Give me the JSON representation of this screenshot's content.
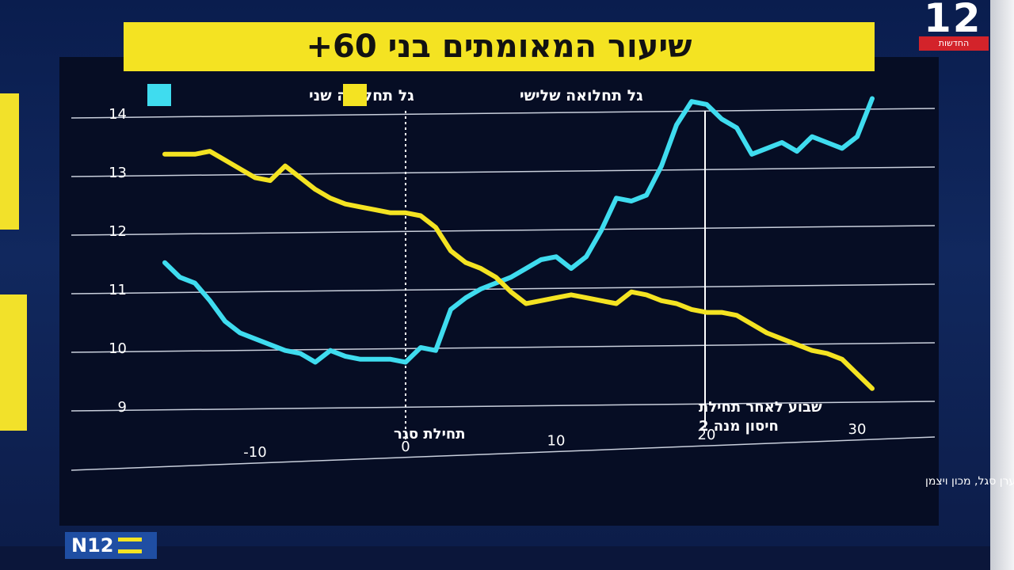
{
  "channel_logo": {
    "number": "12",
    "tagline": "החדשות"
  },
  "n12_badge": "N12",
  "chart_data": {
    "type": "line",
    "title": "שיעור המאומתים בני 60+",
    "source": "נתונים: פרופ' ערן סגל, מכון ויצמן",
    "x_ticks": [
      -10,
      0,
      10,
      20,
      30
    ],
    "y_ticks": [
      9,
      10,
      11,
      12,
      13,
      14
    ],
    "xlim": [
      -17,
      33
    ],
    "ylim": [
      8.5,
      14.5
    ],
    "grid": true,
    "legend_position": "top-left",
    "series": [
      {
        "name": "גל תחלואה שני",
        "color": "#3fdcef",
        "x": [
          -16,
          -15,
          -14,
          -13,
          -12,
          -11,
          -10,
          -9,
          -8,
          -7,
          -6,
          -5,
          -4,
          -3,
          -2,
          -1,
          0,
          1,
          2,
          3,
          4,
          5,
          6,
          7,
          8,
          9,
          10,
          11,
          12,
          13,
          14,
          15,
          16,
          17,
          18,
          19,
          20,
          21,
          22,
          23,
          24,
          25,
          26,
          27,
          28,
          29,
          30,
          31
        ],
        "y": [
          11.45,
          11.2,
          11.1,
          10.8,
          10.45,
          10.25,
          10.15,
          10.05,
          9.95,
          9.9,
          9.75,
          9.95,
          9.85,
          9.8,
          9.8,
          9.8,
          9.75,
          10.0,
          9.95,
          10.65,
          10.85,
          11.0,
          11.1,
          11.2,
          11.35,
          11.5,
          11.55,
          11.35,
          11.55,
          12.0,
          12.55,
          12.5,
          12.6,
          13.1,
          13.8,
          14.2,
          14.15,
          13.9,
          13.75,
          13.3,
          13.4,
          13.5,
          13.35,
          13.6,
          13.5,
          13.4,
          13.6,
          14.25
        ]
      },
      {
        "name": "גל תחלואה שלישי",
        "color": "#f4e322",
        "x": [
          -16,
          -15,
          -14,
          -13,
          -12,
          -11,
          -10,
          -9,
          -8,
          -7,
          -6,
          -5,
          -4,
          -3,
          -2,
          -1,
          0,
          1,
          2,
          3,
          4,
          5,
          6,
          7,
          8,
          9,
          10,
          11,
          12,
          13,
          14,
          15,
          16,
          17,
          18,
          19,
          20,
          21,
          22,
          23,
          24,
          25,
          26,
          27,
          28,
          29,
          30,
          31
        ],
        "y": [
          13.3,
          13.3,
          13.3,
          13.35,
          13.2,
          13.05,
          12.9,
          12.85,
          13.1,
          12.9,
          12.7,
          12.55,
          12.45,
          12.4,
          12.35,
          12.3,
          12.3,
          12.25,
          12.05,
          11.65,
          11.45,
          11.35,
          11.2,
          10.95,
          10.75,
          10.8,
          10.85,
          10.9,
          10.85,
          10.8,
          10.75,
          10.95,
          10.9,
          10.8,
          10.75,
          10.65,
          10.6,
          10.6,
          10.55,
          10.4,
          10.25,
          10.15,
          10.05,
          9.95,
          9.9,
          9.8,
          9.55,
          9.3
        ]
      }
    ],
    "annotations": [
      {
        "x": 0,
        "label": "תחילת סגר"
      },
      {
        "x": 20,
        "label_line1": "שבוע לאחר תחילת",
        "label_line2": "חיסון מנה 2"
      }
    ]
  }
}
